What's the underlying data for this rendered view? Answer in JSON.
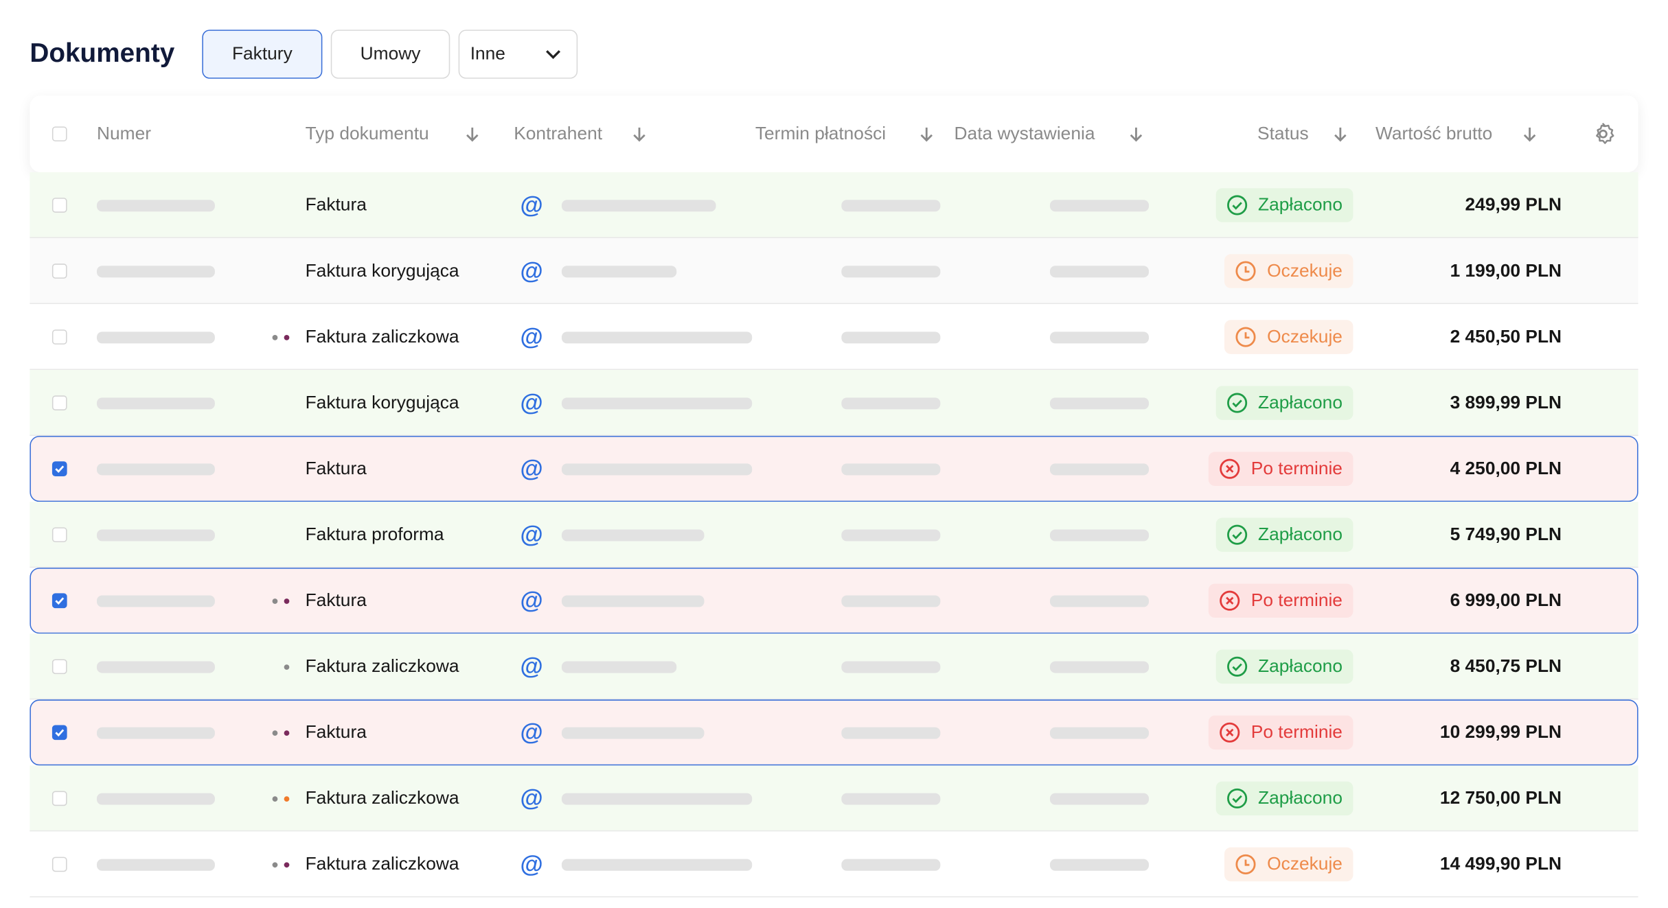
{
  "header": {
    "title": "Dokumenty",
    "tabs": [
      "Faktury",
      "Umowy",
      "Inne"
    ],
    "active_tab": 0
  },
  "table": {
    "columns": [
      "Numer",
      "Typ dokumentu",
      "Kontrahent",
      "Termin płatności",
      "Data wystawienia",
      "Status",
      "Wartość brutto"
    ],
    "rows": [
      {
        "type": "Faktura",
        "dots": [],
        "status": "Zapłacono",
        "status_icon": "check",
        "status_color": "#1f9d47",
        "status_bg": "#e6f6e2",
        "row_bg": "#f4fbf1",
        "amount": "249,99 PLN",
        "selected": false
      },
      {
        "type": "Faktura korygująca",
        "dots": [],
        "status": "Oczekuje",
        "status_icon": "clock",
        "status_color": "#ee8a4a",
        "status_bg": "#fdf1ea",
        "row_bg": "#fafafa",
        "amount": "1 199,00 PLN",
        "selected": false
      },
      {
        "type": "Faktura zaliczkowa",
        "dots": [
          "#8a8a8a",
          "#7a2a5c"
        ],
        "status": "Oczekuje",
        "status_icon": "clock",
        "status_color": "#ee8a4a",
        "status_bg": "#fdf1ea",
        "row_bg": "#ffffff",
        "amount": "2 450,50 PLN",
        "selected": false
      },
      {
        "type": "Faktura korygująca",
        "dots": [],
        "status": "Zapłacono",
        "status_icon": "check",
        "status_color": "#1f9d47",
        "status_bg": "#e6f6e2",
        "row_bg": "#f4fbf1",
        "amount": "3 899,99 PLN",
        "selected": false
      },
      {
        "type": "Faktura",
        "dots": [],
        "status": "Po terminie",
        "status_icon": "x",
        "status_color": "#e33b3b",
        "status_bg": "#fde3e3",
        "row_bg": "#fdf0f0",
        "amount": "4 250,00 PLN",
        "selected": true
      },
      {
        "type": "Faktura proforma",
        "dots": [],
        "status": "Zapłacono",
        "status_icon": "check",
        "status_color": "#1f9d47",
        "status_bg": "#e6f6e2",
        "row_bg": "#f4fbf1",
        "amount": "5 749,90 PLN",
        "selected": false
      },
      {
        "type": "Faktura",
        "dots": [
          "#8a8a8a",
          "#7a2a5c"
        ],
        "status": "Po terminie",
        "status_icon": "x",
        "status_color": "#e33b3b",
        "status_bg": "#fde3e3",
        "row_bg": "#fdf0f0",
        "amount": "6 999,00 PLN",
        "selected": true
      },
      {
        "type": "Faktura zaliczkowa",
        "dots": [
          "#8a8a8a"
        ],
        "status": "Zapłacono",
        "status_icon": "check",
        "status_color": "#1f9d47",
        "status_bg": "#e6f6e2",
        "row_bg": "#f4fbf1",
        "amount": "8 450,75 PLN",
        "selected": false
      },
      {
        "type": "Faktura",
        "dots": [
          "#8a8a8a",
          "#7a2a5c"
        ],
        "status": "Po terminie",
        "status_icon": "x",
        "status_color": "#e33b3b",
        "status_bg": "#fde3e3",
        "row_bg": "#fdf0f0",
        "amount": "10 299,99 PLN",
        "selected": true
      },
      {
        "type": "Faktura zaliczkowa",
        "dots": [
          "#8a8a8a",
          "#f07a2a"
        ],
        "status": "Zapłacono",
        "status_icon": "check",
        "status_color": "#1f9d47",
        "status_bg": "#e6f6e2",
        "row_bg": "#f4fbf1",
        "amount": "12 750,00 PLN",
        "selected": false
      },
      {
        "type": "Faktura zaliczkowa",
        "dots": [
          "#8a8a8a",
          "#7a2a5c"
        ],
        "status": "Oczekuje",
        "status_icon": "clock",
        "status_color": "#ee8a4a",
        "status_bg": "#fdf1ea",
        "row_bg": "#ffffff",
        "amount": "14 499,90 PLN",
        "selected": false
      }
    ]
  }
}
